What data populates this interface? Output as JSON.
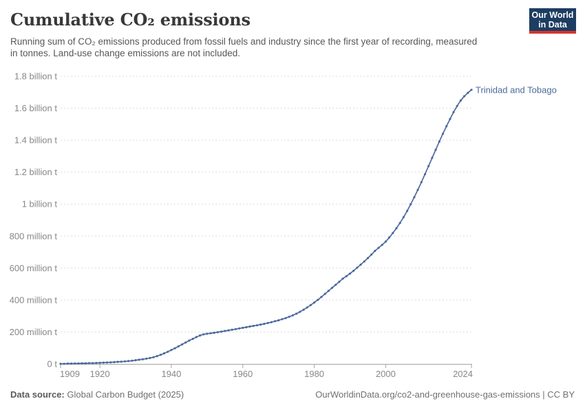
{
  "header": {
    "title": "Cumulative CO₂ emissions",
    "subtitle": "Running sum of CO₂ emissions produced from fossil fuels and industry since the first year of recording, measured in tonnes. Land-use change emissions are not included.",
    "logo": {
      "line1": "Our World",
      "line2": "in Data"
    }
  },
  "colors": {
    "series": "#4C6A9C",
    "logo_bg": "#1d3d63",
    "logo_accent": "#d5342f",
    "grid": "#dcdcdc",
    "axis": "#a3a3a3",
    "tick_label": "#878787"
  },
  "chart_data": {
    "type": "line",
    "title": "Cumulative CO₂ emissions",
    "unit": "tonnes",
    "xlabel": "",
    "ylabel": "",
    "xlim": [
      1909,
      2024
    ],
    "ylim": [
      0,
      1800000000
    ],
    "grid": "horizontal-dashed",
    "legend_position": "end-of-line",
    "x_ticks": [
      1909,
      1920,
      1940,
      1960,
      1980,
      2000,
      2024
    ],
    "y_ticks": [
      {
        "value": 0,
        "label": "0 t"
      },
      {
        "value": 200,
        "label": "200 million t"
      },
      {
        "value": 400,
        "label": "400 million t"
      },
      {
        "value": 600,
        "label": "600 million t"
      },
      {
        "value": 800,
        "label": "800 million t"
      },
      {
        "value": 1000,
        "label": "1 billion t"
      },
      {
        "value": 1200,
        "label": "1.2 billion t"
      },
      {
        "value": 1400,
        "label": "1.4 billion t"
      },
      {
        "value": 1600,
        "label": "1.6 billion t"
      },
      {
        "value": 1800,
        "label": "1.8 billion t"
      }
    ],
    "value_unit_of_points": "million tonnes",
    "series": [
      {
        "name": "Trinidad and Tobago",
        "color": "#4C6A9C",
        "points": [
          [
            1909,
            1
          ],
          [
            1910,
            1
          ],
          [
            1911,
            2
          ],
          [
            1912,
            2
          ],
          [
            1913,
            3
          ],
          [
            1914,
            3
          ],
          [
            1915,
            4
          ],
          [
            1916,
            4
          ],
          [
            1917,
            5
          ],
          [
            1918,
            5
          ],
          [
            1919,
            6
          ],
          [
            1920,
            7
          ],
          [
            1921,
            8
          ],
          [
            1922,
            9
          ],
          [
            1923,
            10
          ],
          [
            1924,
            11
          ],
          [
            1925,
            13
          ],
          [
            1926,
            14
          ],
          [
            1927,
            16
          ],
          [
            1928,
            18
          ],
          [
            1929,
            20
          ],
          [
            1930,
            23
          ],
          [
            1931,
            26
          ],
          [
            1932,
            29
          ],
          [
            1933,
            33
          ],
          [
            1934,
            37
          ],
          [
            1935,
            42
          ],
          [
            1936,
            49
          ],
          [
            1937,
            57
          ],
          [
            1938,
            66
          ],
          [
            1939,
            76
          ],
          [
            1940,
            87
          ],
          [
            1941,
            98
          ],
          [
            1942,
            110
          ],
          [
            1943,
            122
          ],
          [
            1944,
            134
          ],
          [
            1945,
            146
          ],
          [
            1946,
            157
          ],
          [
            1947,
            168
          ],
          [
            1948,
            178
          ],
          [
            1949,
            185
          ],
          [
            1950,
            189
          ],
          [
            1951,
            192
          ],
          [
            1952,
            195
          ],
          [
            1953,
            199
          ],
          [
            1954,
            202
          ],
          [
            1955,
            206
          ],
          [
            1956,
            210
          ],
          [
            1957,
            214
          ],
          [
            1958,
            218
          ],
          [
            1959,
            222
          ],
          [
            1960,
            226
          ],
          [
            1961,
            230
          ],
          [
            1962,
            234
          ],
          [
            1963,
            238
          ],
          [
            1964,
            242
          ],
          [
            1965,
            246
          ],
          [
            1966,
            251
          ],
          [
            1967,
            256
          ],
          [
            1968,
            261
          ],
          [
            1969,
            267
          ],
          [
            1970,
            273
          ],
          [
            1971,
            280
          ],
          [
            1972,
            287
          ],
          [
            1973,
            295
          ],
          [
            1974,
            304
          ],
          [
            1975,
            314
          ],
          [
            1976,
            326
          ],
          [
            1977,
            339
          ],
          [
            1978,
            353
          ],
          [
            1979,
            368
          ],
          [
            1980,
            384
          ],
          [
            1981,
            401
          ],
          [
            1982,
            419
          ],
          [
            1983,
            438
          ],
          [
            1984,
            457
          ],
          [
            1985,
            476
          ],
          [
            1986,
            495
          ],
          [
            1987,
            514
          ],
          [
            1988,
            534
          ],
          [
            1989,
            549
          ],
          [
            1990,
            565
          ],
          [
            1991,
            583
          ],
          [
            1992,
            602
          ],
          [
            1993,
            621
          ],
          [
            1994,
            641
          ],
          [
            1995,
            662
          ],
          [
            1996,
            684
          ],
          [
            1997,
            707
          ],
          [
            1998,
            726
          ],
          [
            1999,
            745
          ],
          [
            2000,
            765
          ],
          [
            2001,
            791
          ],
          [
            2002,
            819
          ],
          [
            2003,
            849
          ],
          [
            2004,
            882
          ],
          [
            2005,
            918
          ],
          [
            2006,
            957
          ],
          [
            2007,
            999
          ],
          [
            2008,
            1043
          ],
          [
            2009,
            1089
          ],
          [
            2010,
            1137
          ],
          [
            2011,
            1187
          ],
          [
            2012,
            1238
          ],
          [
            2013,
            1289
          ],
          [
            2014,
            1340
          ],
          [
            2015,
            1391
          ],
          [
            2016,
            1440
          ],
          [
            2017,
            1487
          ],
          [
            2018,
            1532
          ],
          [
            2019,
            1575
          ],
          [
            2020,
            1614
          ],
          [
            2021,
            1648
          ],
          [
            2022,
            1675
          ],
          [
            2023,
            1696
          ],
          [
            2024,
            1715
          ]
        ]
      }
    ]
  },
  "footer": {
    "source_label": "Data source:",
    "source_value": "Global Carbon Budget (2025)",
    "attribution": "OurWorldinData.org/co2-and-greenhouse-gas-emissions | CC BY"
  }
}
